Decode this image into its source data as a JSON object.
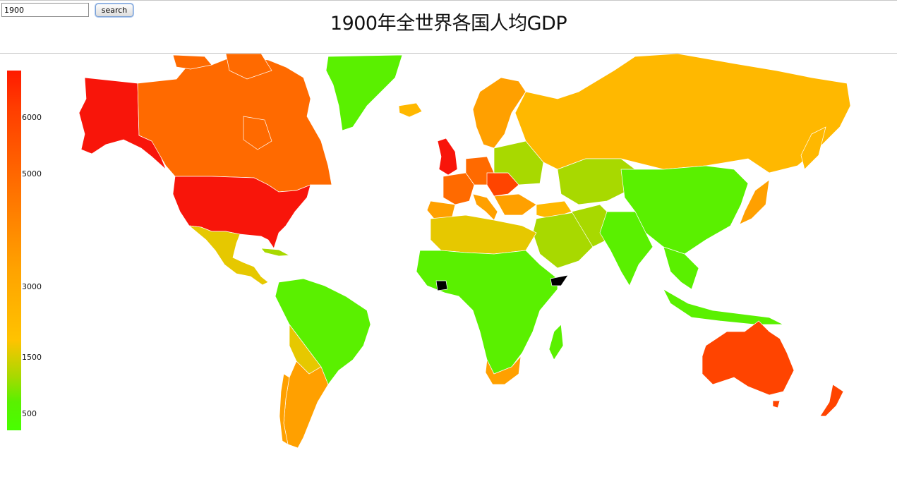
{
  "controls": {
    "year_value": "1900",
    "search_label": "search"
  },
  "title": "1900年全世界各国人均GDP",
  "legend": {
    "ticks": [
      "6000",
      "5000",
      "3000",
      "1500",
      "500"
    ],
    "colors": [
      "#ff1a00",
      "#ff6a00",
      "#ffa200",
      "#ffc300",
      "#48ff00"
    ]
  },
  "colors": {
    "very_high": "#f8150a",
    "high": "#ff4400",
    "upper_mid": "#ff6a00",
    "mid": "#ffa000",
    "mid_low": "#ffb800",
    "low_mid": "#e6c800",
    "low": "#a8d900",
    "very_low": "#5af000",
    "no_data": "#000000"
  }
}
